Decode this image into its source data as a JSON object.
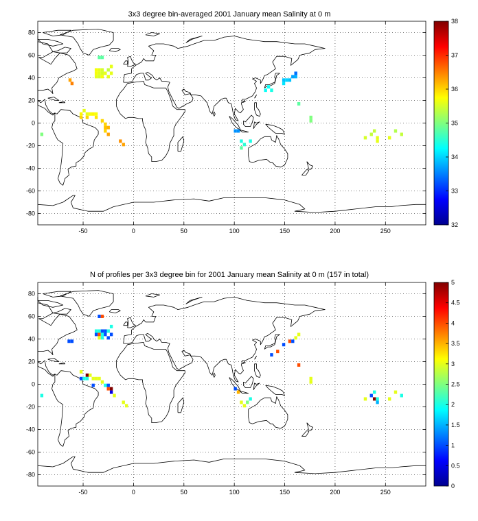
{
  "chart_data": [
    {
      "type": "heatmap",
      "title": "3x3 degree bin-averaged 2001 January mean Salinity at 0 m",
      "xlim": [
        -95,
        290
      ],
      "ylim": [
        -90,
        90
      ],
      "xticks": [
        -50,
        0,
        50,
        100,
        150,
        200,
        250
      ],
      "yticks": [
        -80,
        -60,
        -40,
        -20,
        0,
        20,
        40,
        60,
        80
      ],
      "grid": true,
      "colorbar": {
        "min": 32,
        "max": 38,
        "ticks": [
          32,
          33,
          34,
          35,
          36,
          37,
          38
        ]
      },
      "bin_size_deg": 3,
      "cells": [
        {
          "lon": -91,
          "lat": -10,
          "value": 35.0
        },
        {
          "lon": -63,
          "lat": 38,
          "value": 36.3
        },
        {
          "lon": -61,
          "lat": 35,
          "value": 36.5
        },
        {
          "lon": -34,
          "lat": 58,
          "value": 34.8
        },
        {
          "lon": -31,
          "lat": 58,
          "value": 34.8
        },
        {
          "lon": -37,
          "lat": 47,
          "value": 35.7
        },
        {
          "lon": -34,
          "lat": 47,
          "value": 35.6
        },
        {
          "lon": -31,
          "lat": 47,
          "value": 35.5
        },
        {
          "lon": -37,
          "lat": 44,
          "value": 35.7
        },
        {
          "lon": -34,
          "lat": 44,
          "value": 35.6
        },
        {
          "lon": -31,
          "lat": 44,
          "value": 35.5
        },
        {
          "lon": -28,
          "lat": 44,
          "value": 35.6
        },
        {
          "lon": -37,
          "lat": 41,
          "value": 35.6
        },
        {
          "lon": -34,
          "lat": 41,
          "value": 35.5
        },
        {
          "lon": -31,
          "lat": 41,
          "value": 35.7
        },
        {
          "lon": -25,
          "lat": 41,
          "value": 35.6
        },
        {
          "lon": -22,
          "lat": 44,
          "value": 35.6
        },
        {
          "lon": -25,
          "lat": 47,
          "value": 35.4
        },
        {
          "lon": -22,
          "lat": 50,
          "value": 35.6
        },
        {
          "lon": -52,
          "lat": 8,
          "value": 35.8
        },
        {
          "lon": -49,
          "lat": 11,
          "value": 35.6
        },
        {
          "lon": -52,
          "lat": 5,
          "value": 36.0
        },
        {
          "lon": -46,
          "lat": 8,
          "value": 35.6
        },
        {
          "lon": -43,
          "lat": 8,
          "value": 35.7
        },
        {
          "lon": -40,
          "lat": 8,
          "value": 35.8
        },
        {
          "lon": -37,
          "lat": 8,
          "value": 35.7
        },
        {
          "lon": -46,
          "lat": 5,
          "value": 36.0
        },
        {
          "lon": -37,
          "lat": 5,
          "value": 35.9
        },
        {
          "lon": -31,
          "lat": 2,
          "value": 36.0
        },
        {
          "lon": -28,
          "lat": -1,
          "value": 36.0
        },
        {
          "lon": -28,
          "lat": -4,
          "value": 36.1
        },
        {
          "lon": -25,
          "lat": -4,
          "value": 36.2
        },
        {
          "lon": -28,
          "lat": -7,
          "value": 36.0
        },
        {
          "lon": -25,
          "lat": -10,
          "value": 36.3
        },
        {
          "lon": -13,
          "lat": -16,
          "value": 36.4
        },
        {
          "lon": -10,
          "lat": -19,
          "value": 36.3
        },
        {
          "lon": 101,
          "lat": -7,
          "value": 33.6
        },
        {
          "lon": 104,
          "lat": -7,
          "value": 33.6
        },
        {
          "lon": 107,
          "lat": -16,
          "value": 34.4
        },
        {
          "lon": 110,
          "lat": -19,
          "value": 34.5
        },
        {
          "lon": 107,
          "lat": -22,
          "value": 34.8
        },
        {
          "lon": 116,
          "lat": -16,
          "value": 34.4
        },
        {
          "lon": 131,
          "lat": 29,
          "value": 34.3
        },
        {
          "lon": 137,
          "lat": 29,
          "value": 34.4
        },
        {
          "lon": 134,
          "lat": 32,
          "value": 34.3
        },
        {
          "lon": 149,
          "lat": 35,
          "value": 34.1
        },
        {
          "lon": 149,
          "lat": 38,
          "value": 33.9
        },
        {
          "lon": 152,
          "lat": 38,
          "value": 34.0
        },
        {
          "lon": 155,
          "lat": 38,
          "value": 33.9
        },
        {
          "lon": 158,
          "lat": 41,
          "value": 33.7
        },
        {
          "lon": 161,
          "lat": 41,
          "value": 33.8
        },
        {
          "lon": 161,
          "lat": 44,
          "value": 33.4
        },
        {
          "lon": 164,
          "lat": 17,
          "value": 34.8
        },
        {
          "lon": 176,
          "lat": 2,
          "value": 35.0
        },
        {
          "lon": 176,
          "lat": 5,
          "value": 35.0
        },
        {
          "lon": 230,
          "lat": -13,
          "value": 35.5
        },
        {
          "lon": 236,
          "lat": -10,
          "value": 35.4
        },
        {
          "lon": 239,
          "lat": -7,
          "value": 35.4
        },
        {
          "lon": 242,
          "lat": -13,
          "value": 35.6
        },
        {
          "lon": 242,
          "lat": -16,
          "value": 35.6
        },
        {
          "lon": 254,
          "lat": -13,
          "value": 35.6
        },
        {
          "lon": 260,
          "lat": -7,
          "value": 35.3
        },
        {
          "lon": 266,
          "lat": -10,
          "value": 35.4
        }
      ]
    },
    {
      "type": "heatmap",
      "title": "N of profiles per 3x3 degree bin for 2001 January mean Salinity at 0 m (157 in total)",
      "xlim": [
        -95,
        290
      ],
      "ylim": [
        -90,
        90
      ],
      "xticks": [
        -50,
        0,
        50,
        100,
        150,
        200,
        250
      ],
      "yticks": [
        -80,
        -60,
        -40,
        -20,
        0,
        20,
        40,
        60,
        80
      ],
      "grid": true,
      "colorbar": {
        "min": 0,
        "max": 5,
        "ticks": [
          0,
          0.5,
          1,
          1.5,
          2,
          2.5,
          3,
          3.5,
          4,
          4.5,
          5
        ]
      },
      "bin_size_deg": 3,
      "cells": [
        {
          "lon": -91,
          "lat": -10,
          "value": 2
        },
        {
          "lon": -64,
          "lat": 38,
          "value": 1
        },
        {
          "lon": -61,
          "lat": 38,
          "value": 1
        },
        {
          "lon": -34,
          "lat": 60,
          "value": 1
        },
        {
          "lon": -31,
          "lat": 60,
          "value": 4
        },
        {
          "lon": -22,
          "lat": 51,
          "value": 2
        },
        {
          "lon": -37,
          "lat": 47,
          "value": 2
        },
        {
          "lon": -34,
          "lat": 47,
          "value": 2
        },
        {
          "lon": -31,
          "lat": 47,
          "value": 1
        },
        {
          "lon": -28,
          "lat": 47,
          "value": 1
        },
        {
          "lon": -25,
          "lat": 47,
          "value": 2
        },
        {
          "lon": -37,
          "lat": 44,
          "value": 1
        },
        {
          "lon": -34,
          "lat": 44,
          "value": 4
        },
        {
          "lon": -31,
          "lat": 44,
          "value": 2
        },
        {
          "lon": -28,
          "lat": 44,
          "value": 1
        },
        {
          "lon": -22,
          "lat": 44,
          "value": 1
        },
        {
          "lon": -34,
          "lat": 41,
          "value": 3
        },
        {
          "lon": -31,
          "lat": 41,
          "value": 2
        },
        {
          "lon": -25,
          "lat": 41,
          "value": 1
        },
        {
          "lon": -52,
          "lat": 11,
          "value": 3
        },
        {
          "lon": -52,
          "lat": 5,
          "value": 1
        },
        {
          "lon": -49,
          "lat": 5,
          "value": 2
        },
        {
          "lon": -46,
          "lat": 8,
          "value": 5
        },
        {
          "lon": -43,
          "lat": 8,
          "value": 3
        },
        {
          "lon": -40,
          "lat": 5,
          "value": 3
        },
        {
          "lon": -37,
          "lat": 5,
          "value": 3
        },
        {
          "lon": -34,
          "lat": 5,
          "value": 3
        },
        {
          "lon": -46,
          "lat": 5,
          "value": 2
        },
        {
          "lon": -40,
          "lat": -1,
          "value": 1
        },
        {
          "lon": -31,
          "lat": 2,
          "value": 3
        },
        {
          "lon": -28,
          "lat": -1,
          "value": 2
        },
        {
          "lon": -25,
          "lat": -1,
          "value": 1
        },
        {
          "lon": -25,
          "lat": -4,
          "value": 4
        },
        {
          "lon": -22,
          "lat": -4,
          "value": 5
        },
        {
          "lon": -22,
          "lat": -7,
          "value": 0.5
        },
        {
          "lon": -19,
          "lat": -10,
          "value": 3
        },
        {
          "lon": -10,
          "lat": -16,
          "value": 3
        },
        {
          "lon": -7,
          "lat": -19,
          "value": 3
        },
        {
          "lon": 101,
          "lat": -4,
          "value": 1
        },
        {
          "lon": 104,
          "lat": -7,
          "value": 3.5
        },
        {
          "lon": 107,
          "lat": -16,
          "value": 3
        },
        {
          "lon": 110,
          "lat": -19,
          "value": 3
        },
        {
          "lon": 113,
          "lat": -16,
          "value": 2.5
        },
        {
          "lon": 116,
          "lat": -13,
          "value": 2
        },
        {
          "lon": 137,
          "lat": 26,
          "value": 1
        },
        {
          "lon": 143,
          "lat": 29,
          "value": 4
        },
        {
          "lon": 149,
          "lat": 35,
          "value": 1
        },
        {
          "lon": 155,
          "lat": 38,
          "value": 4
        },
        {
          "lon": 158,
          "lat": 38,
          "value": 1
        },
        {
          "lon": 161,
          "lat": 41,
          "value": 3
        },
        {
          "lon": 164,
          "lat": 44,
          "value": 3
        },
        {
          "lon": 164,
          "lat": 17,
          "value": 4
        },
        {
          "lon": 176,
          "lat": 5,
          "value": 3
        },
        {
          "lon": 176,
          "lat": 2,
          "value": 3
        },
        {
          "lon": 230,
          "lat": -13,
          "value": 3
        },
        {
          "lon": 236,
          "lat": -10,
          "value": 1
        },
        {
          "lon": 239,
          "lat": -7,
          "value": 2
        },
        {
          "lon": 239,
          "lat": -13,
          "value": 5
        },
        {
          "lon": 242,
          "lat": -13,
          "value": 2
        },
        {
          "lon": 242,
          "lat": -16,
          "value": 1.5
        },
        {
          "lon": 254,
          "lat": -13,
          "value": 3
        },
        {
          "lon": 260,
          "lat": -7,
          "value": 3
        },
        {
          "lon": 266,
          "lat": -10,
          "value": 2
        }
      ]
    }
  ]
}
